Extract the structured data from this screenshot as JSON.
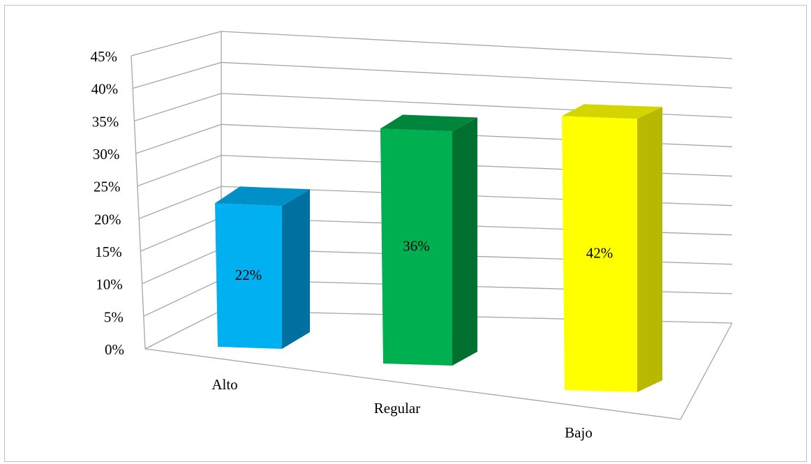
{
  "chart_data": {
    "type": "bar",
    "style": "3d-clustered-column",
    "categories": [
      "Alto",
      "Regular",
      "Bajo"
    ],
    "values": [
      22,
      36,
      42
    ],
    "data_labels": [
      "22%",
      "36%",
      "42%"
    ],
    "colors": [
      "#00B0F0",
      "#00B050",
      "#FFFF00"
    ],
    "side_colors": [
      "#0070A0",
      "#007030",
      "#B8B800"
    ],
    "top_colors": [
      "#0090C8",
      "#00853D",
      "#D4D400"
    ],
    "ylim": [
      0,
      45
    ],
    "y_ticks": [
      0,
      5,
      10,
      15,
      20,
      25,
      30,
      35,
      40,
      45
    ],
    "y_tick_labels": [
      "0%",
      "5%",
      "10%",
      "15%",
      "20%",
      "25%",
      "30%",
      "35%",
      "40%",
      "45%"
    ],
    "grid": true,
    "legend": "none",
    "title": "",
    "xlabel": "",
    "ylabel": ""
  }
}
